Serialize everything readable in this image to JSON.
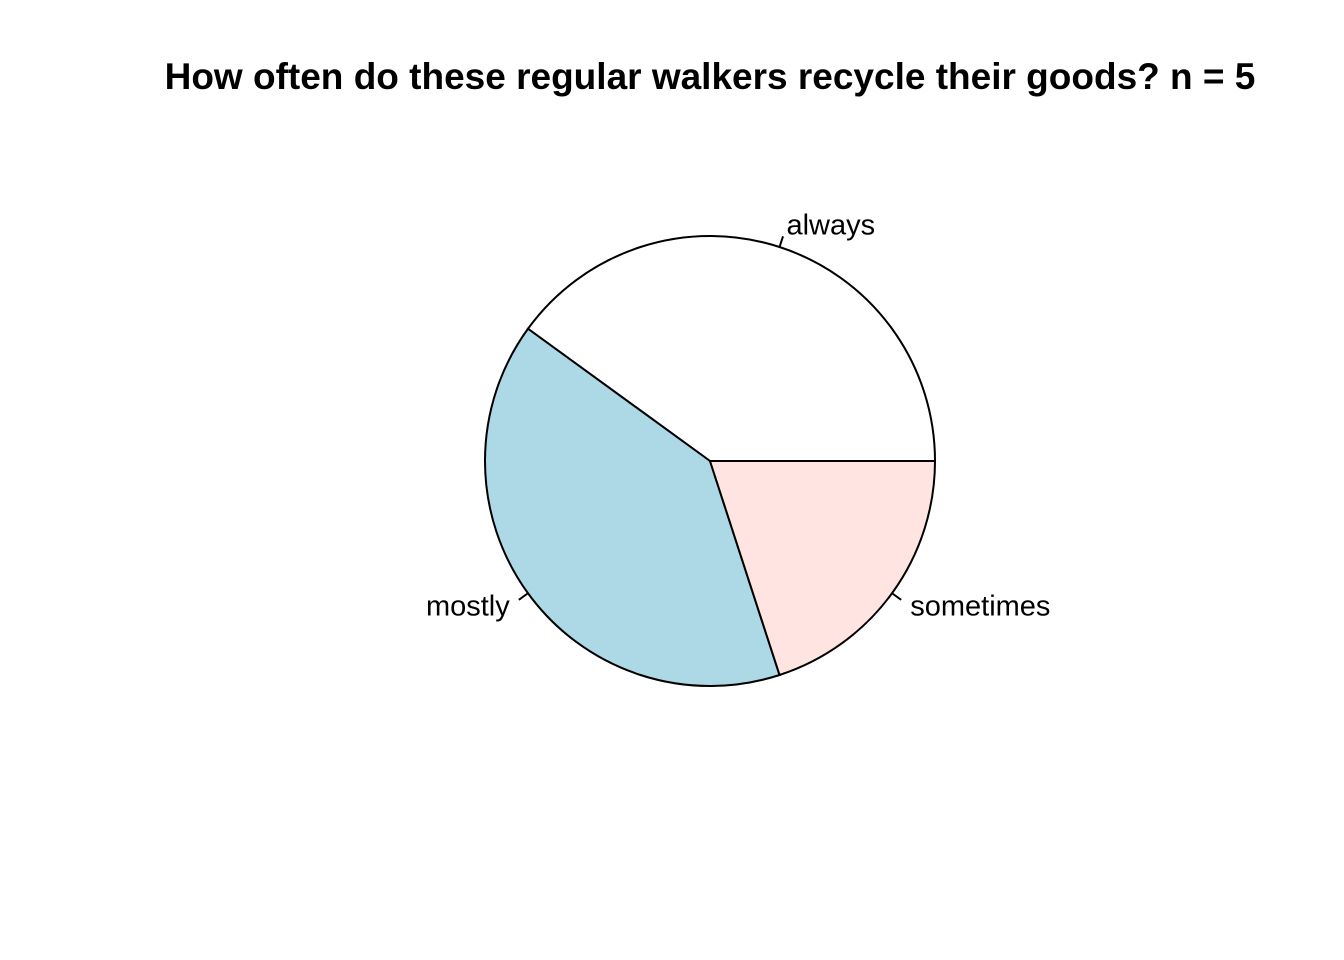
{
  "chart_data": {
    "type": "pie",
    "title": "How often do these regular walkers recycle their goods? n = 5",
    "categories": [
      "always",
      "mostly",
      "sometimes"
    ],
    "values": [
      2,
      2,
      1
    ],
    "colors": [
      "#ffffff",
      "#add8e6",
      "#ffe4e1"
    ],
    "start_angle_deg": 0,
    "direction": "counterclockwise",
    "border_color": "#000000"
  }
}
